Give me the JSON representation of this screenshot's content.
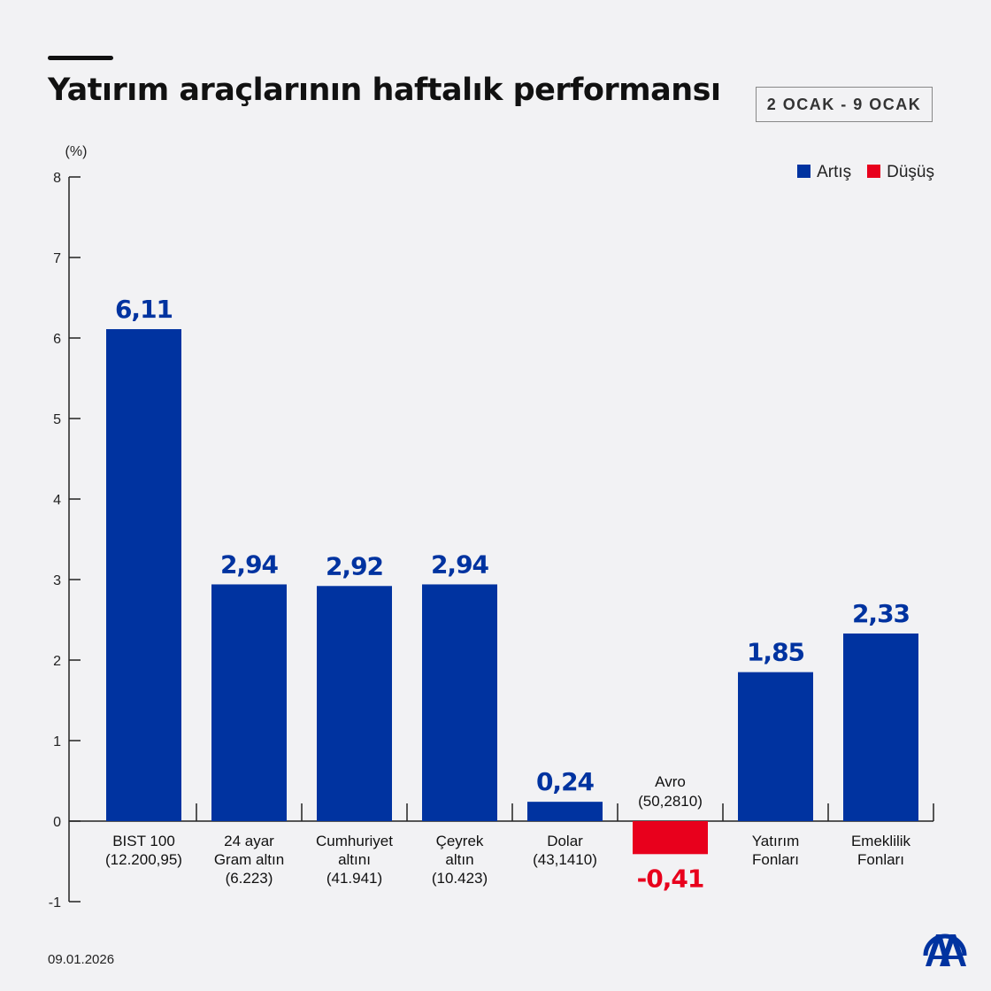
{
  "title": "Yatırım araçlarının haftalık performansı",
  "date_range": "2 OCAK - 9 OCAK",
  "footer_date": "09.01.2026",
  "logo_text": "AA",
  "legend": [
    {
      "label": "Artış",
      "color": "#0033a0"
    },
    {
      "label": "Düşüş",
      "color": "#e8001c"
    }
  ],
  "chart_data": {
    "type": "bar",
    "title": "Yatırım araçlarının haftalık performansı",
    "ylabel": "(%)",
    "ylim": [
      -1,
      8
    ],
    "yticks": [
      "-1",
      "0",
      "1",
      "2",
      "3",
      "4",
      "5",
      "6",
      "7",
      "8"
    ],
    "grid": false,
    "legend_position": "top-right",
    "categories": [
      [
        "BIST 100",
        "(12.200,95)"
      ],
      [
        "24 ayar",
        "Gram altın",
        "(6.223)"
      ],
      [
        "Cumhuriyet",
        "altını",
        "(41.941)"
      ],
      [
        "Çeyrek",
        "altın",
        "(10.423)"
      ],
      [
        "Dolar",
        "(43,1410)"
      ],
      [
        "Avro",
        "(50,2810)"
      ],
      [
        "Yatırım",
        "Fonları"
      ],
      [
        "Emeklilik",
        "Fonları"
      ]
    ],
    "values": [
      6.11,
      2.94,
      2.92,
      2.94,
      0.24,
      -0.41,
      1.85,
      2.33
    ],
    "value_labels": [
      "6,11",
      "2,94",
      "2,92",
      "2,94",
      "0,24",
      "-0,41",
      "1,85",
      "2,33"
    ],
    "colors": {
      "positive": "#0033a0",
      "negative": "#e8001c"
    }
  }
}
